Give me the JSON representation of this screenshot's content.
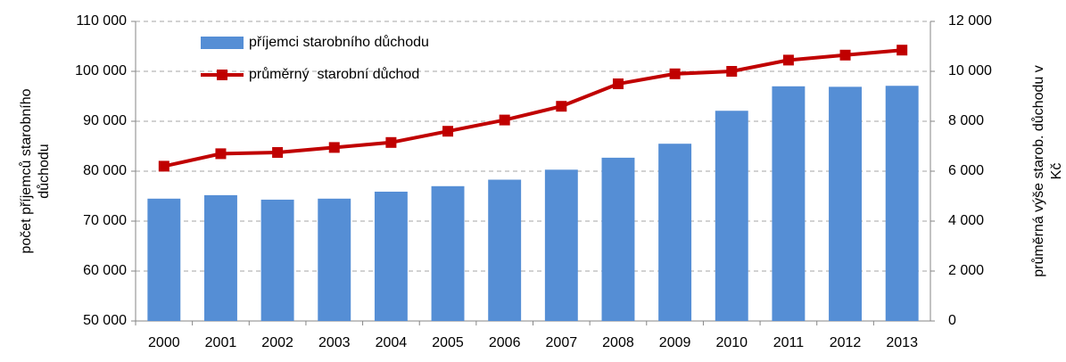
{
  "chart_data": {
    "type": "bar_line",
    "categories": [
      "2000",
      "2001",
      "2002",
      "2003",
      "2004",
      "2005",
      "2006",
      "2007",
      "2008",
      "2009",
      "2010",
      "2011",
      "2012",
      "2013"
    ],
    "series": [
      {
        "name": "příjemci starobního důchodu",
        "type": "bar",
        "color": "#558ed5",
        "values": [
          74500,
          75200,
          74300,
          74500,
          75900,
          77000,
          78300,
          80300,
          82700,
          85500,
          92100,
          97000,
          96900,
          97100
        ]
      },
      {
        "name": "průměrný  starobní důchod",
        "type": "line",
        "axis": "y2",
        "color": "#c00000",
        "values": [
          6200,
          6700,
          6750,
          6950,
          7150,
          7600,
          8050,
          8600,
          9500,
          9900,
          10000,
          10450,
          10650,
          10850
        ]
      }
    ],
    "y_label": [
      "počet příjemců starobního",
      "důchodu"
    ],
    "y2_label": [
      "průměrná výše starob. důchodu v",
      "Kč"
    ],
    "ylim": [
      50000,
      110000
    ],
    "yticks": [
      {
        "value": 50000,
        "label": "50 000"
      },
      {
        "value": 60000,
        "label": "60 000"
      },
      {
        "value": 70000,
        "label": "70 000"
      },
      {
        "value": 80000,
        "label": "80 000"
      },
      {
        "value": 90000,
        "label": "90 000"
      },
      {
        "value": 100000,
        "label": "100 000"
      },
      {
        "value": 110000,
        "label": "110 000"
      }
    ],
    "y2lim": [
      0,
      12000
    ],
    "y2ticks": [
      0,
      {
        "value": 2000,
        "label": "2 000"
      },
      {
        "value": 4000,
        "label": "4 000"
      },
      {
        "value": 6000,
        "label": "6 000"
      },
      {
        "value": 8000,
        "label": "8 000"
      },
      {
        "value": 10000,
        "label": "10 000"
      },
      {
        "value": 12000,
        "label": "12 000"
      }
    ],
    "grid": true,
    "legend": "upper left"
  }
}
